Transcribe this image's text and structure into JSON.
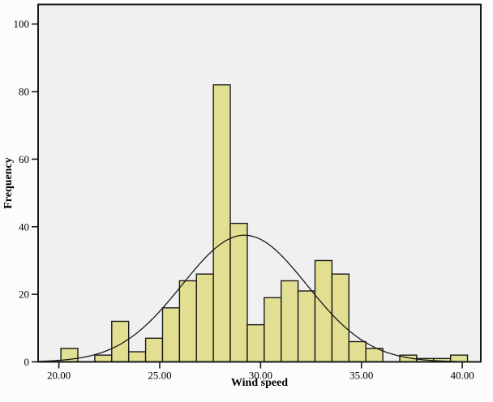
{
  "chart_data": {
    "type": "bar",
    "subtype": "histogram-with-normal-curve",
    "title": "",
    "xlabel": "Wind speed",
    "ylabel": "Frequency",
    "x_tick_labels": [
      "20.00",
      "25.00",
      "30.00",
      "35.00",
      "40.00"
    ],
    "x_tick_values": [
      20,
      25,
      30,
      35,
      40
    ],
    "y_tick_labels": [
      "0",
      "20",
      "40",
      "60",
      "80",
      "100"
    ],
    "y_tick_values": [
      0,
      20,
      40,
      60,
      80,
      100
    ],
    "xlim": [
      18.97,
      40.92
    ],
    "ylim": [
      0,
      105.8
    ],
    "grid": false,
    "legend": false,
    "bin_start": 20.1,
    "bin_width": 0.84,
    "frequencies": [
      4,
      0,
      2,
      12,
      3,
      7,
      16,
      24,
      26,
      82,
      41,
      11,
      19,
      24,
      21,
      30,
      26,
      6,
      4,
      0,
      2,
      1,
      1,
      2
    ],
    "normal_curve": {
      "mean": 29.2,
      "sd": 3.1,
      "peak": 37.5
    },
    "colors": {
      "bar_fill": "#e2df93",
      "bar_border": "#1a1a1a",
      "plot_bg": "#f0f0f0",
      "page_bg": "#fcfcfc",
      "curve": "#1a1a1a",
      "frame": "#1a1a1a",
      "tick": "#1a1a1a",
      "text": "#000000"
    }
  }
}
